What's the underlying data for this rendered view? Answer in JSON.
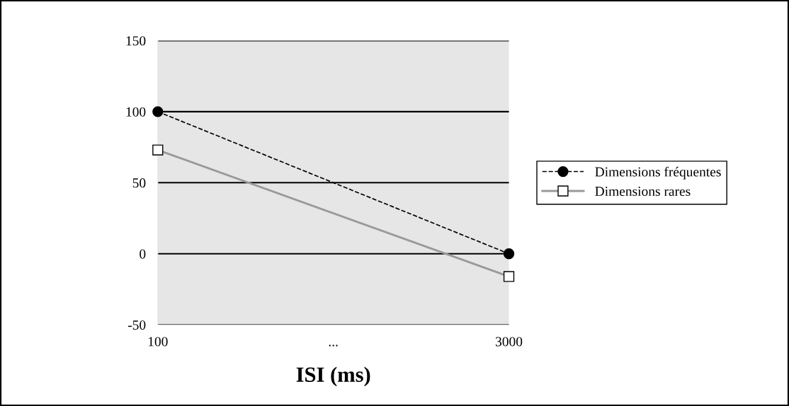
{
  "chart_data": {
    "type": "line",
    "xlabel": "ISI (ms)",
    "x": [
      100,
      3000
    ],
    "xlim": [
      100,
      3000
    ],
    "xticks": [
      100,
      {
        "value": 1550,
        "label": "..."
      },
      3000
    ],
    "ylim": [
      -50,
      150
    ],
    "yticks": [
      {
        "value": -50,
        "label": "-50"
      },
      0,
      50,
      100,
      150
    ],
    "grid": "y",
    "legend": "right",
    "series": [
      {
        "name": "Dimensions fréquentes",
        "color": "#000000",
        "values": [
          100,
          0
        ],
        "marker": "circle",
        "line_style": "dashed"
      },
      {
        "name": "Dimensions rares",
        "color": "#999999",
        "values": [
          73,
          -16
        ],
        "marker": "square",
        "line_style": "solid"
      }
    ]
  }
}
